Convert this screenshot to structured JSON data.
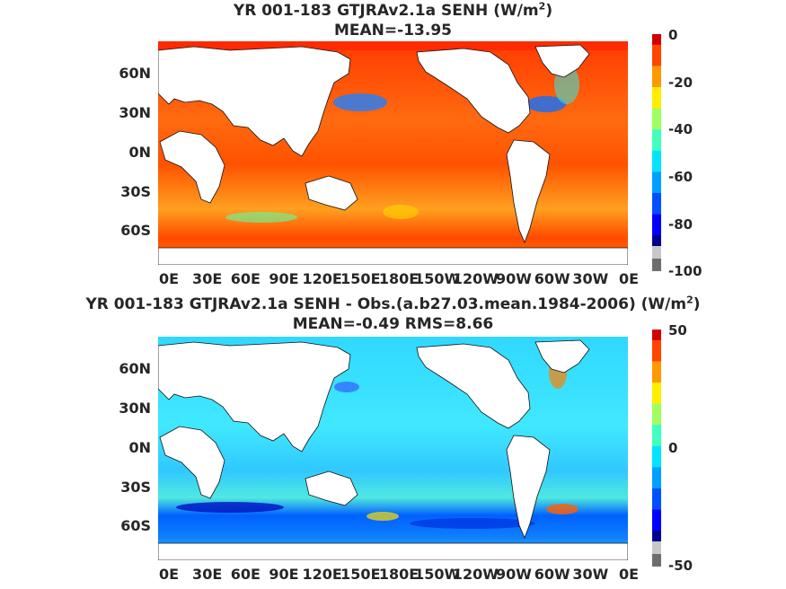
{
  "chart_data": [
    {
      "type": "heatmap",
      "title_line1": "YR 001-183 GTJRAv2.1a  SENH (W/m",
      "title_sup": "2",
      "title_close": ")",
      "subtitle": "MEAN=-13.95",
      "mean": -13.95,
      "x_tick_labels": [
        "0E",
        "30E",
        "60E",
        "90E",
        "120E",
        "150E",
        "180E",
        "150W",
        "120W",
        "90W",
        "60W",
        "30W",
        "0E"
      ],
      "y_tick_labels": [
        "60N",
        "30N",
        "0N",
        "30S",
        "60S"
      ],
      "colorbar_ticks": [
        "0",
        "-20",
        "-40",
        "-60",
        "-80",
        "-100"
      ],
      "colorbar_range": [
        -100,
        0
      ],
      "colormap": "jet"
    },
    {
      "type": "heatmap",
      "title_line1": "YR 001-183 GTJRAv2.1a SENH - Obs.(a.b27.03.mean.1984-2006) (W/m",
      "title_sup": "2",
      "title_close": ")",
      "subtitle": "MEAN=-0.49 RMS=8.66",
      "mean": -0.49,
      "rms": 8.66,
      "x_tick_labels": [
        "0E",
        "30E",
        "60E",
        "90E",
        "120E",
        "150E",
        "180E",
        "150W",
        "120W",
        "90W",
        "60W",
        "30W",
        "0E"
      ],
      "y_tick_labels": [
        "60N",
        "30N",
        "0N",
        "30S",
        "60S"
      ],
      "colorbar_ticks": [
        "50",
        "0",
        "-50"
      ],
      "colorbar_range": [
        -50,
        50
      ],
      "colormap": "jet"
    }
  ],
  "colors": {
    "jet": [
      "#00008f",
      "#0000ff",
      "#0050ff",
      "#00a0ff",
      "#00e5ff",
      "#40ffbf",
      "#a0ff60",
      "#ffee00",
      "#ff9900",
      "#ff4400",
      "#d40000"
    ],
    "land": "#ffffff",
    "ocean_top": "#ff5a14",
    "ocean_bottom": "#3fd8ff"
  }
}
